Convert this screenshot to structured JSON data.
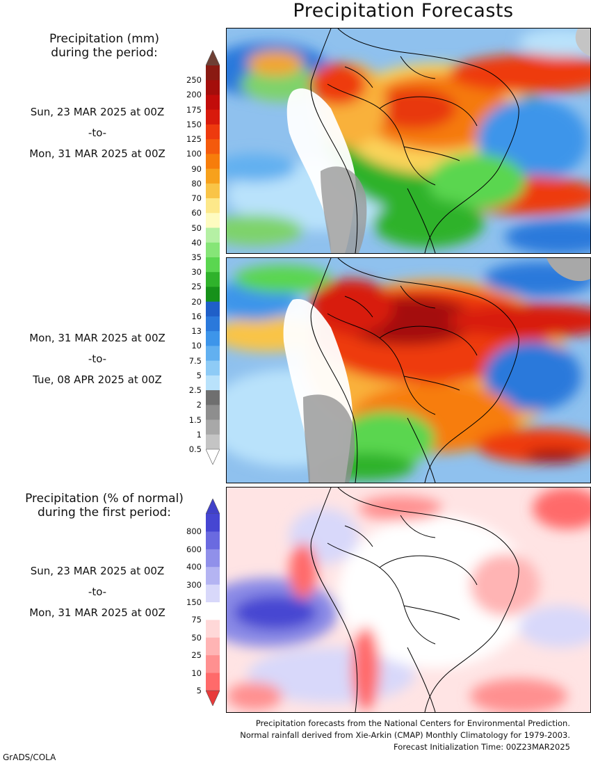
{
  "title": "Precipitation Forecasts",
  "amount_header": [
    "Precipitation (mm)",
    "during the period:"
  ],
  "percent_header": [
    "Precipitation (% of normal)",
    "during the first period:"
  ],
  "periods": [
    {
      "start": "Sun, 23 MAR 2025 at 00Z",
      "sep": "-to-",
      "end": "Mon, 31 MAR 2025 at 00Z"
    },
    {
      "start": "Mon, 31 MAR 2025 at 00Z",
      "sep": "-to-",
      "end": "Tue, 08 APR 2025 at 00Z"
    },
    {
      "start": "Sun, 23 MAR 2025 at 00Z",
      "sep": "-to-",
      "end": "Mon, 31 MAR 2025 at 00Z"
    }
  ],
  "mm_scale": {
    "labels": [
      "250",
      "200",
      "175",
      "150",
      "125",
      "100",
      "90",
      "80",
      "70",
      "60",
      "50",
      "40",
      "35",
      "30",
      "25",
      "20",
      "16",
      "13",
      "10",
      "7.5",
      "5",
      "2.5",
      "2",
      "1.5",
      "1",
      "0.5"
    ],
    "colors": [
      "#8a1a12",
      "#a40e0b",
      "#c20c0a",
      "#d81a0c",
      "#ee3a0e",
      "#f45a0c",
      "#f77d0b",
      "#f7a11c",
      "#f9c447",
      "#fde88a",
      "#fefbc0",
      "#b5f0a4",
      "#86e577",
      "#5ad650",
      "#2fb22b",
      "#16911a",
      "#1f5fc8",
      "#2b79db",
      "#3d95ea",
      "#62b0f0",
      "#8ecbf6",
      "#b9e2fb",
      "#6f6f6f",
      "#8e8e8e",
      "#a8a8a8",
      "#c4c4c4"
    ],
    "top_arrow_color": "#6e3f34",
    "bottom_arrow_color": "#ffffff"
  },
  "pct_scale": {
    "labels": [
      "800",
      "600",
      "400",
      "300",
      "150",
      "75",
      "50",
      "25",
      "10",
      "5"
    ],
    "colors": [
      "#4646d2",
      "#6a6ae0",
      "#9090ea",
      "#b4b4f2",
      "#d8d8fa",
      "#ffffff",
      "#ffd8d8",
      "#ffb4b4",
      "#ff9090",
      "#ff6a6a"
    ],
    "top_arrow_color": "#4040c8",
    "bottom_arrow_color": "#e83a3a"
  },
  "footer": [
    "Precipitation forecasts from the National Centers for Environmental Prediction.",
    "Normal rainfall derived from Xie-Arkin (CMAP) Monthly Climatology for 1979-2003.",
    "Forecast Initialization Time: 00Z23MAR2025"
  ],
  "credit": "GrADS/COLA"
}
